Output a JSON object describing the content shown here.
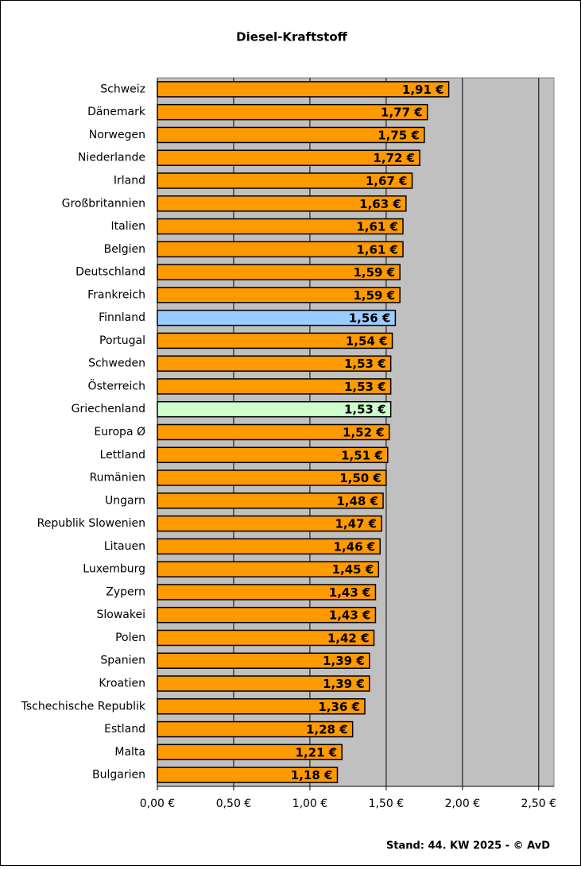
{
  "chart_data": {
    "type": "barh",
    "title": "Diesel-Kraftstoff",
    "categories": [
      "Schweiz",
      "Dänemark",
      "Norwegen",
      "Niederlande",
      "Irland",
      "Großbritannien",
      "Italien",
      "Belgien",
      "Deutschland",
      "Frankreich",
      "Finnland",
      "Portugal",
      "Schweden",
      "Österreich",
      "Griechenland",
      "Europa Ø",
      "Lettland",
      "Rumänien",
      "Ungarn",
      "Republik Slowenien",
      "Litauen",
      "Luxemburg",
      "Zypern",
      "Slowakei",
      "Polen",
      "Spanien",
      "Kroatien",
      "Tschechische Republik",
      "Estland",
      "Malta",
      "Bulgarien"
    ],
    "values": [
      1.91,
      1.77,
      1.75,
      1.72,
      1.67,
      1.63,
      1.61,
      1.61,
      1.59,
      1.59,
      1.56,
      1.54,
      1.53,
      1.53,
      1.53,
      1.52,
      1.51,
      1.5,
      1.48,
      1.47,
      1.46,
      1.45,
      1.43,
      1.43,
      1.42,
      1.39,
      1.39,
      1.36,
      1.28,
      1.21,
      1.18
    ],
    "value_labels": [
      "1,91 €",
      "1,77 €",
      "1,75 €",
      "1,72 €",
      "1,67 €",
      "1,63 €",
      "1,61 €",
      "1,61 €",
      "1,59 €",
      "1,59 €",
      "1,56 €",
      "1,54 €",
      "1,53 €",
      "1,53 €",
      "1,53 €",
      "1,52 €",
      "1,51 €",
      "1,50 €",
      "1,48 €",
      "1,47 €",
      "1,46 €",
      "1,45 €",
      "1,43 €",
      "1,43 €",
      "1,42 €",
      "1,39 €",
      "1,39 €",
      "1,36 €",
      "1,28 €",
      "1,21 €",
      "1,18 €"
    ],
    "colors": [
      "#ff9900",
      "#ff9900",
      "#ff9900",
      "#ff9900",
      "#ff9900",
      "#ff9900",
      "#ff9900",
      "#ff9900",
      "#ff9900",
      "#ff9900",
      "#99ccff",
      "#ff9900",
      "#ff9900",
      "#ff9900",
      "#ccffcc",
      "#ff9900",
      "#ff9900",
      "#ff9900",
      "#ff9900",
      "#ff9900",
      "#ff9900",
      "#ff9900",
      "#ff9900",
      "#ff9900",
      "#ff9900",
      "#ff9900",
      "#ff9900",
      "#ff9900",
      "#ff9900",
      "#ff9900",
      "#ff9900"
    ],
    "xlim": [
      0,
      2.6
    ],
    "xticks": [
      {
        "value": 0,
        "label": "0,00 €"
      },
      {
        "value": 0.5,
        "label": "0,50 €"
      },
      {
        "value": 1,
        "label": "1,00 €"
      },
      {
        "value": 1.5,
        "label": "1,50 €"
      },
      {
        "value": 2,
        "label": "2,00 €"
      },
      {
        "value": 2.5,
        "label": "2,50 €"
      }
    ],
    "grid": true,
    "plot_background": "#c0c0c0",
    "footnote": "Stand: 44. KW 2025 - © AvD"
  }
}
